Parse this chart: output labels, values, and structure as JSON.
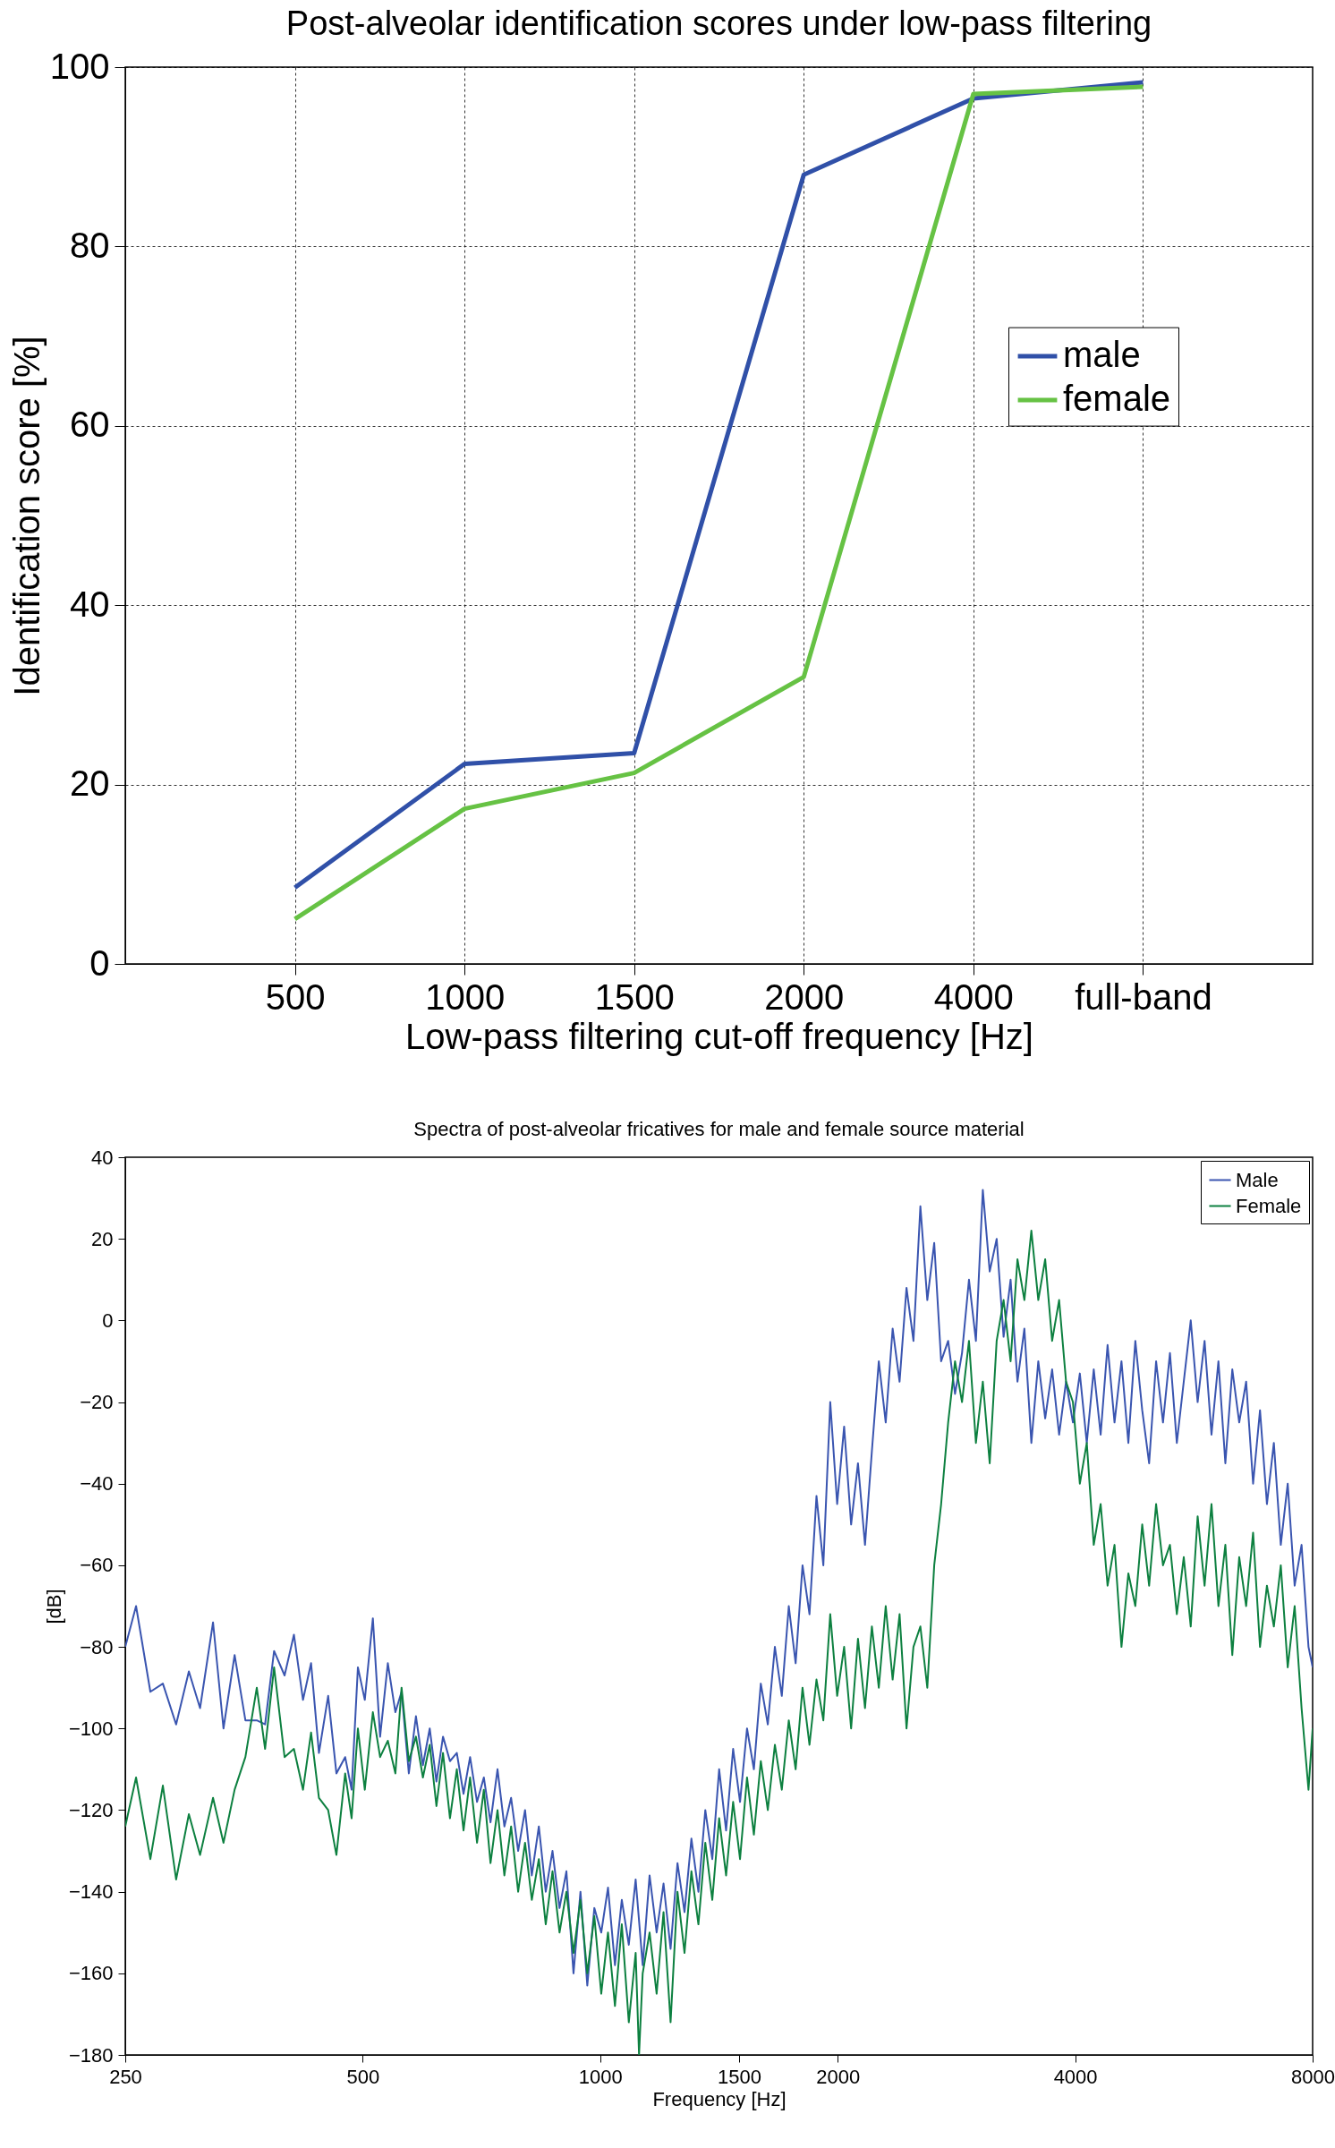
{
  "chart_data": [
    {
      "type": "line",
      "title": "Post-alveolar identification scores under low-pass filtering",
      "xlabel": "Low-pass filtering cut-off frequency [Hz]",
      "ylabel": "Identification score [%]",
      "categories": [
        "500",
        "1000",
        "1500",
        "2000",
        "4000",
        "full-band"
      ],
      "ylim": [
        0,
        100
      ],
      "yticks": [
        0,
        20,
        40,
        60,
        80,
        100
      ],
      "grid": true,
      "legend": "right",
      "series": [
        {
          "name": "male",
          "color": "#3050a8",
          "values": [
            8.5,
            22.3,
            23.5,
            88,
            96.5,
            98.3
          ]
        },
        {
          "name": "female",
          "color": "#66c244",
          "values": [
            5,
            17.3,
            21.3,
            32,
            97,
            97.8
          ]
        }
      ]
    },
    {
      "type": "line",
      "title": "Spectra of post-alveolar fricatives for male and female source material",
      "xlabel": "Frequency [Hz]",
      "ylabel": "[dB]",
      "log": "x",
      "xlim": [
        250,
        8000
      ],
      "xticks": [
        250,
        500,
        1000,
        1500,
        2000,
        4000,
        8000
      ],
      "ylim": [
        -180,
        40
      ],
      "yticks": [
        -180,
        -160,
        -140,
        -120,
        -100,
        -80,
        -60,
        -40,
        -20,
        0,
        20,
        40
      ],
      "legend": "top right",
      "series": [
        {
          "name": "Male",
          "color": "#3a55b0",
          "x": [
            250,
            258,
            269,
            279,
            290,
            301,
            311,
            323,
            333,
            344,
            355,
            367,
            376,
            386,
            398,
            409,
            420,
            430,
            440,
            452,
            463,
            475,
            484,
            493,
            503,
            515,
            526,
            538,
            550,
            560,
            572,
            584,
            596,
            608,
            620,
            632,
            645,
            658,
            671,
            684,
            698,
            712,
            726,
            741,
            756,
            771,
            787,
            803,
            819,
            836,
            853,
            870,
            888,
            906,
            925,
            944,
            963,
            983,
            1003,
            1023,
            1044,
            1065,
            1087,
            1109,
            1132,
            1155,
            1179,
            1203,
            1228,
            1253,
            1279,
            1305,
            1332,
            1359,
            1387,
            1415,
            1444,
            1474,
            1504,
            1535,
            1566,
            1598,
            1631,
            1665,
            1699,
            1734,
            1769,
            1805,
            1842,
            1880,
            1918,
            1957,
            1997,
            2038,
            2080,
            2122,
            2166,
            2210,
            2255,
            2301,
            2348,
            2396,
            2445,
            2495,
            2546,
            2598,
            2651,
            2705,
            2761,
            2817,
            2875,
            2934,
            2994,
            3055,
            3117,
            3181,
            3246,
            3313,
            3380,
            3449,
            3520,
            3592,
            3665,
            3740,
            3817,
            3895,
            3974,
            4055,
            4138,
            4223,
            4309,
            4397,
            4487,
            4579,
            4672,
            4768,
            4865,
            4964,
            5066,
            5169,
            5275,
            5382,
            5492,
            5605,
            5719,
            5836,
            5955,
            6077,
            6201,
            6328,
            6457,
            6589,
            6724,
            6861,
            7001,
            7144,
            7290,
            7439,
            7591,
            7746,
            7904,
            8000
          ],
          "values": [
            -80,
            -70,
            -91,
            -89,
            -99,
            -86,
            -95,
            -74,
            -100,
            -82,
            -98,
            -98,
            -99,
            -81,
            -87,
            -77,
            -93,
            -84,
            -106,
            -92,
            -111,
            -107,
            -115,
            -85,
            -93,
            -73,
            -102,
            -84,
            -96,
            -91,
            -111,
            -97,
            -109,
            -100,
            -113,
            -102,
            -108,
            -106,
            -116,
            -107,
            -118,
            -112,
            -123,
            -110,
            -124,
            -117,
            -130,
            -120,
            -136,
            -124,
            -140,
            -130,
            -144,
            -135,
            -160,
            -140,
            -163,
            -144,
            -150,
            -139,
            -158,
            -142,
            -153,
            -137,
            -158,
            -136,
            -150,
            -138,
            -154,
            -133,
            -145,
            -127,
            -140,
            -120,
            -132,
            -110,
            -125,
            -105,
            -118,
            -100,
            -110,
            -89,
            -99,
            -80,
            -92,
            -70,
            -84,
            -60,
            -72,
            -43,
            -60,
            -20,
            -45,
            -26,
            -50,
            -35,
            -55,
            -32,
            -10,
            -25,
            -2,
            -15,
            8,
            -5,
            28,
            5,
            19,
            -10,
            -5,
            -18,
            -8,
            10,
            -5,
            32,
            12,
            20,
            -4,
            10,
            -15,
            -2,
            -30,
            -10,
            -24,
            -12,
            -28,
            -15,
            -25,
            -13,
            -30,
            -12,
            -28,
            -6,
            -25,
            -10,
            -30,
            -5,
            -22,
            -35,
            -10,
            -25,
            -8,
            -30,
            -15,
            0,
            -20,
            -5,
            -28,
            -10,
            -35,
            -12,
            -25,
            -15,
            -40,
            -22,
            -45,
            -30,
            -55,
            -40,
            -65,
            -55,
            -80,
            -85
          ]
        },
        {
          "name": "Female",
          "color": "#0d8040",
          "x": [
            250,
            258,
            269,
            279,
            290,
            301,
            311,
            323,
            333,
            344,
            355,
            367,
            376,
            386,
            398,
            409,
            420,
            430,
            440,
            452,
            463,
            475,
            484,
            493,
            503,
            515,
            526,
            538,
            550,
            560,
            572,
            584,
            596,
            608,
            620,
            632,
            645,
            658,
            671,
            684,
            698,
            712,
            726,
            741,
            756,
            771,
            787,
            803,
            819,
            836,
            853,
            870,
            888,
            906,
            925,
            944,
            963,
            983,
            1003,
            1023,
            1044,
            1065,
            1087,
            1109,
            1120,
            1132,
            1155,
            1179,
            1203,
            1228,
            1253,
            1279,
            1305,
            1332,
            1359,
            1387,
            1415,
            1444,
            1474,
            1504,
            1535,
            1566,
            1598,
            1631,
            1665,
            1699,
            1734,
            1769,
            1805,
            1842,
            1880,
            1918,
            1957,
            1997,
            2038,
            2080,
            2122,
            2166,
            2210,
            2255,
            2301,
            2348,
            2396,
            2445,
            2495,
            2546,
            2598,
            2651,
            2705,
            2761,
            2817,
            2875,
            2934,
            2994,
            3055,
            3117,
            3181,
            3246,
            3313,
            3380,
            3449,
            3520,
            3592,
            3665,
            3740,
            3817,
            3895,
            3974,
            4055,
            4138,
            4223,
            4309,
            4397,
            4487,
            4579,
            4672,
            4768,
            4865,
            4964,
            5066,
            5169,
            5275,
            5382,
            5492,
            5605,
            5719,
            5836,
            5955,
            6077,
            6201,
            6328,
            6457,
            6589,
            6724,
            6861,
            7001,
            7144,
            7290,
            7439,
            7591,
            7746,
            7904,
            8000
          ],
          "values": [
            -124,
            -112,
            -132,
            -114,
            -137,
            -121,
            -131,
            -117,
            -128,
            -115,
            -107,
            -90,
            -105,
            -85,
            -107,
            -105,
            -115,
            -101,
            -117,
            -120,
            -131,
            -111,
            -122,
            -100,
            -115,
            -96,
            -107,
            -103,
            -111,
            -90,
            -108,
            -102,
            -112,
            -104,
            -119,
            -106,
            -122,
            -110,
            -125,
            -112,
            -128,
            -115,
            -133,
            -120,
            -136,
            -124,
            -140,
            -128,
            -142,
            -132,
            -148,
            -135,
            -150,
            -140,
            -155,
            -142,
            -160,
            -146,
            -165,
            -150,
            -168,
            -148,
            -172,
            -155,
            -180,
            -160,
            -150,
            -165,
            -145,
            -172,
            -140,
            -155,
            -135,
            -148,
            -128,
            -142,
            -122,
            -136,
            -118,
            -132,
            -112,
            -126,
            -108,
            -120,
            -104,
            -115,
            -98,
            -110,
            -90,
            -104,
            -88,
            -98,
            -72,
            -92,
            -80,
            -100,
            -78,
            -95,
            -75,
            -90,
            -70,
            -88,
            -72,
            -100,
            -80,
            -75,
            -90,
            -60,
            -45,
            -25,
            -10,
            -20,
            -5,
            -30,
            -15,
            -35,
            -5,
            5,
            -10,
            15,
            5,
            22,
            5,
            15,
            -5,
            5,
            -15,
            -20,
            -40,
            -30,
            -55,
            -45,
            -65,
            -55,
            -80,
            -62,
            -70,
            -50,
            -65,
            -45,
            -60,
            -55,
            -72,
            -58,
            -75,
            -48,
            -65,
            -45,
            -70,
            -55,
            -82,
            -58,
            -70,
            -52,
            -80,
            -65,
            -75,
            -60,
            -85,
            -70,
            -95,
            -115,
            -100
          ]
        }
      ]
    }
  ]
}
